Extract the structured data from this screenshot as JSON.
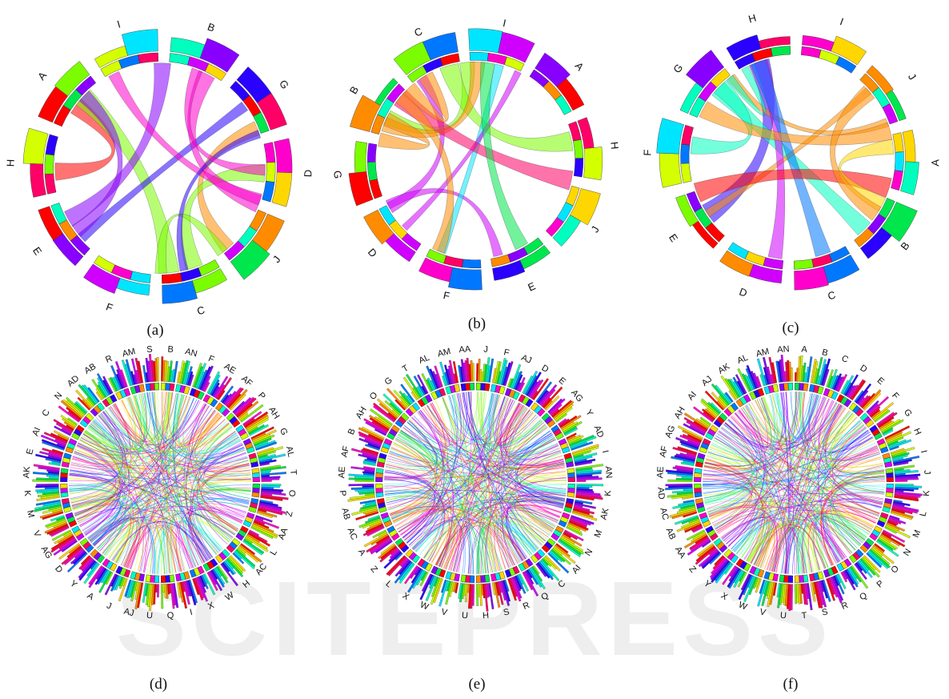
{
  "watermark": "SCITEPRESS",
  "palette": [
    "#ff0000",
    "#ff8c00",
    "#ffd700",
    "#d4ff00",
    "#7cfc00",
    "#00e64d",
    "#00ffbf",
    "#00e5ff",
    "#0077ff",
    "#2a00ff",
    "#8800ff",
    "#d000ff",
    "#ff00cc",
    "#ff0066"
  ],
  "panels": [
    {
      "id": "a",
      "caption": "(a)",
      "type": "basic",
      "labels": [
        "A",
        "I",
        "B",
        "G",
        "D",
        "J",
        "C",
        "F",
        "E",
        "H"
      ]
    },
    {
      "id": "b",
      "caption": "(b)",
      "type": "basic",
      "labels": [
        "B",
        "C",
        "I",
        "A",
        "H",
        "J",
        "E",
        "F",
        "D",
        "G"
      ]
    },
    {
      "id": "c",
      "caption": "(c)",
      "type": "basic",
      "labels": [
        "A",
        "B",
        "C",
        "D",
        "E",
        "F",
        "G",
        "H",
        "I",
        "J"
      ]
    },
    {
      "id": "d",
      "caption": "(d)",
      "type": "dense",
      "labels": [
        "B",
        "AN",
        "F",
        "AE",
        "AF",
        "P",
        "AH",
        "G",
        "AL",
        "T",
        "O",
        "Z",
        "AA",
        "L",
        "AC",
        "H",
        "W",
        "X",
        "I",
        "Q",
        "U",
        "AJ",
        "J",
        "A",
        "Y",
        "D",
        "AG",
        "V",
        "M",
        "K",
        "AK",
        "E",
        "AI",
        "C",
        "N",
        "AD",
        "AB",
        "R",
        "AM",
        "S"
      ]
    },
    {
      "id": "e",
      "caption": "(e)",
      "type": "dense",
      "labels": [
        "J",
        "F",
        "AJ",
        "D",
        "E",
        "AG",
        "Y",
        "AD",
        "I",
        "AN",
        "K",
        "AK",
        "M",
        "N",
        "AI",
        "C",
        "Q",
        "R",
        "S",
        "H",
        "U",
        "V",
        "W",
        "X",
        "L",
        "Z",
        "A",
        "AC",
        "AB",
        "P",
        "AE",
        "AF",
        "B",
        "AH",
        "O",
        "G",
        "T",
        "AL",
        "AM",
        "AA"
      ]
    },
    {
      "id": "f",
      "caption": "(f)",
      "type": "dense",
      "labels": [
        "A",
        "B",
        "C",
        "D",
        "E",
        "F",
        "G",
        "H",
        "I",
        "J",
        "K",
        "L",
        "M",
        "N",
        "O",
        "P",
        "Q",
        "R",
        "S",
        "T",
        "U",
        "V",
        "W",
        "X",
        "Y",
        "Z",
        "AA",
        "AB",
        "AC",
        "AD",
        "AE",
        "AF",
        "AG",
        "AH",
        "AI",
        "AJ",
        "AK",
        "AL",
        "AM",
        "AN"
      ]
    }
  ]
}
